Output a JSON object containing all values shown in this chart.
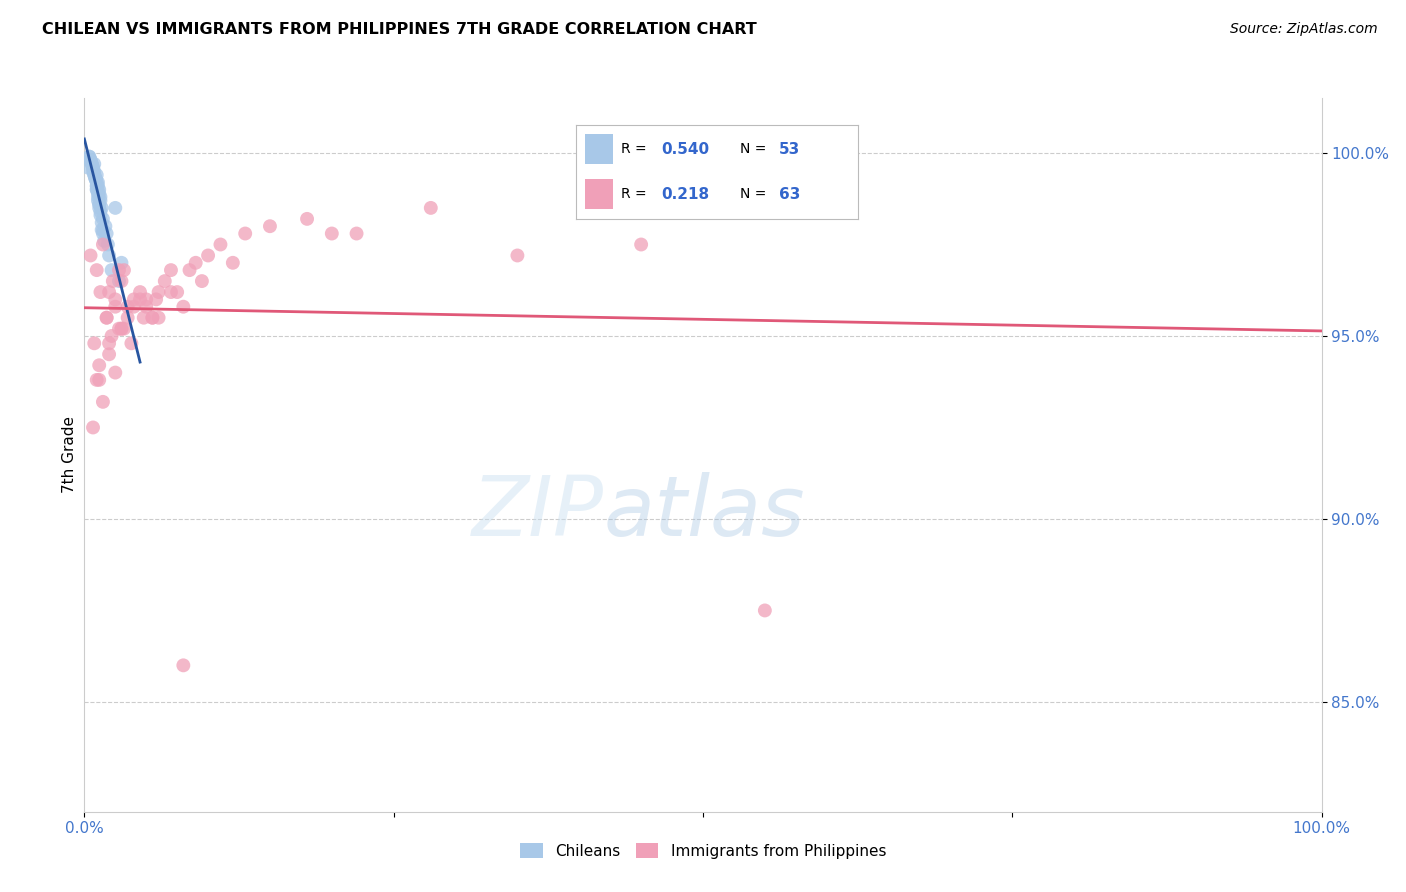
{
  "title": "CHILEAN VS IMMIGRANTS FROM PHILIPPINES 7TH GRADE CORRELATION CHART",
  "source": "Source: ZipAtlas.com",
  "ylabel": "7th Grade",
  "legend_label1": "Chileans",
  "legend_label2": "Immigrants from Philippines",
  "r1": 0.54,
  "n1": 53,
  "r2": 0.218,
  "n2": 63,
  "color_blue": "#a8c8e8",
  "color_pink": "#f0a0b8",
  "color_blue_line": "#2855a0",
  "color_pink_line": "#e05878",
  "color_blue_text": "#3366cc",
  "color_axis_labels": "#4477cc",
  "xlim": [
    0.0,
    100.0
  ],
  "ylim": [
    82.0,
    101.5
  ],
  "yticks": [
    85.0,
    90.0,
    95.0,
    100.0
  ],
  "blue_x": [
    0.3,
    0.5,
    0.7,
    0.8,
    1.0,
    1.1,
    1.2,
    1.3,
    1.4,
    1.5,
    0.4,
    0.6,
    0.9,
    1.0,
    1.1,
    1.2,
    1.3,
    1.5,
    1.6,
    0.5,
    0.7,
    0.8,
    1.0,
    1.1,
    1.2,
    1.4,
    1.5,
    0.6,
    0.9,
    1.0,
    1.1,
    1.3,
    1.4,
    0.4,
    0.7,
    0.9,
    1.0,
    1.2,
    0.8,
    1.1,
    1.3,
    0.5,
    0.8,
    1.0,
    1.2,
    2.5,
    1.7,
    1.8,
    1.9,
    2.0,
    3.0,
    2.2,
    2.8
  ],
  "blue_y": [
    99.6,
    99.8,
    99.5,
    99.7,
    99.4,
    99.2,
    99.0,
    98.8,
    98.5,
    98.2,
    99.9,
    99.7,
    99.3,
    99.1,
    98.9,
    98.6,
    98.4,
    97.9,
    97.6,
    99.8,
    99.6,
    99.4,
    99.1,
    98.8,
    98.5,
    98.1,
    97.8,
    99.7,
    99.3,
    99.0,
    98.7,
    98.3,
    97.9,
    99.9,
    99.6,
    99.3,
    99.0,
    98.6,
    99.4,
    99.1,
    98.7,
    99.8,
    99.5,
    99.2,
    98.9,
    98.5,
    98.0,
    97.8,
    97.5,
    97.2,
    97.0,
    96.8,
    96.5
  ],
  "pink_x": [
    0.5,
    1.0,
    1.5,
    2.0,
    2.5,
    3.0,
    3.5,
    4.0,
    5.0,
    6.0,
    0.8,
    1.2,
    1.8,
    2.2,
    2.8,
    3.2,
    4.5,
    5.5,
    7.0,
    8.0,
    1.0,
    1.5,
    2.0,
    2.5,
    3.0,
    4.0,
    5.0,
    6.5,
    8.5,
    10.0,
    1.3,
    1.8,
    2.3,
    3.0,
    3.8,
    4.8,
    5.8,
    7.5,
    9.5,
    12.0,
    0.7,
    1.2,
    2.0,
    2.8,
    3.5,
    4.5,
    5.5,
    7.0,
    9.0,
    11.0,
    13.0,
    15.0,
    18.0,
    22.0,
    28.0,
    35.0,
    45.0,
    55.0,
    2.5,
    6.0,
    3.2,
    8.0,
    20.0
  ],
  "pink_y": [
    97.2,
    96.8,
    97.5,
    96.2,
    95.8,
    96.5,
    95.5,
    96.0,
    95.8,
    96.2,
    94.8,
    94.2,
    95.5,
    95.0,
    96.8,
    95.2,
    96.0,
    95.5,
    96.2,
    95.8,
    93.8,
    93.2,
    94.5,
    94.0,
    95.2,
    95.8,
    96.0,
    96.5,
    96.8,
    97.2,
    96.2,
    95.5,
    96.5,
    95.2,
    94.8,
    95.5,
    96.0,
    96.2,
    96.5,
    97.0,
    92.5,
    93.8,
    94.8,
    95.2,
    95.8,
    96.2,
    95.5,
    96.8,
    97.0,
    97.5,
    97.8,
    98.0,
    98.2,
    97.8,
    98.5,
    97.2,
    97.5,
    87.5,
    96.0,
    95.5,
    96.8,
    86.0,
    97.8
  ]
}
